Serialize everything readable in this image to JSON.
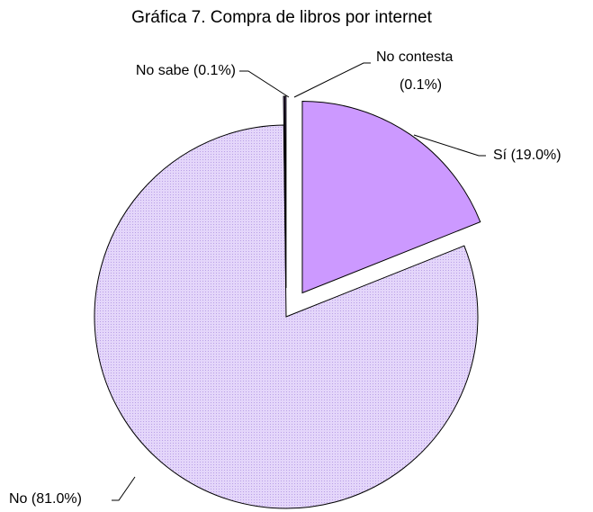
{
  "chart_data": {
    "type": "pie",
    "title": "Gráfica 7. Compra de libros por internet",
    "labels": [
      "Sí (19.0%)",
      "No (81.0%)",
      "No sabe (0.1%)",
      [
        "No contesta",
        "(0.1%)"
      ]
    ],
    "values": [
      19.0,
      81.0,
      0.1,
      0.1
    ],
    "colors": [
      "#cc99ff",
      "#dccbf7",
      "#cc99ff",
      "#cc99ff"
    ],
    "explode": [
      true,
      false,
      true,
      true
    ]
  }
}
